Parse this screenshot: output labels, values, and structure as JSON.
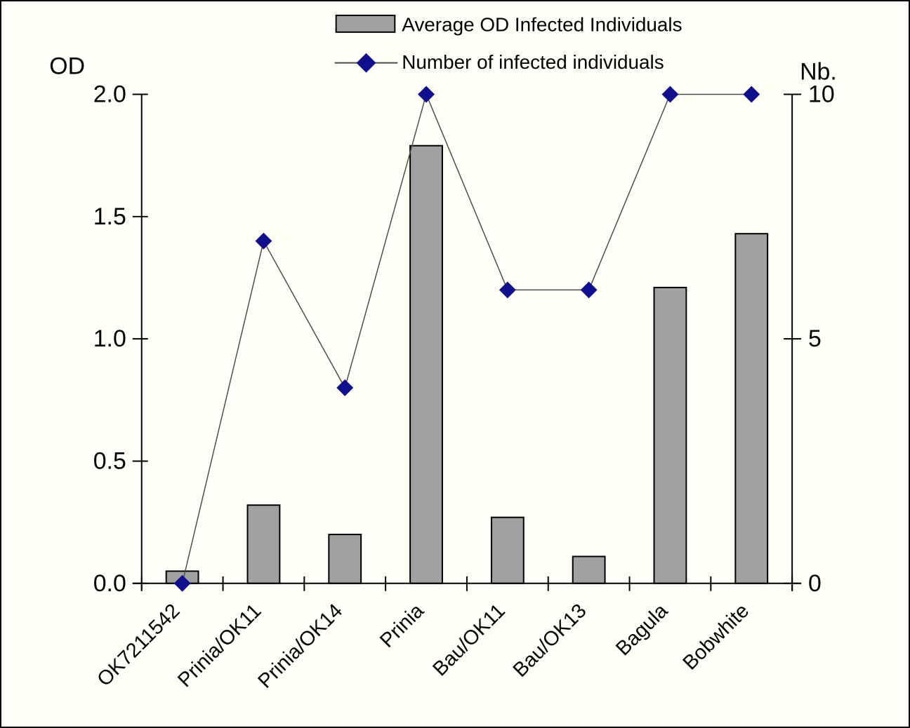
{
  "chart_data": {
    "type": "combo-bar-line",
    "title": "",
    "categories": [
      "OK7211542",
      "Prinia/OK11",
      "Prinia/OK14",
      "Prinia",
      "Bau/OK11",
      "Bau/OK13",
      "Bagula",
      "Bobwhite"
    ],
    "series": [
      {
        "name": "Average OD Infected Individuals",
        "type": "bar",
        "axis": "left",
        "values": [
          0.05,
          0.32,
          0.2,
          1.79,
          0.27,
          0.11,
          1.21,
          1.43
        ]
      },
      {
        "name": "Number of infected individuals",
        "type": "line",
        "axis": "right",
        "marker": "diamond",
        "values": [
          0,
          7,
          4,
          10,
          6,
          6,
          10,
          10
        ]
      }
    ],
    "left_axis": {
      "title": "OD",
      "min": 0,
      "max": 2,
      "tick_labels": [
        "2.0",
        "1.5",
        "1.0",
        "0.5",
        "0.0"
      ],
      "tick_values": [
        2,
        1.5,
        1,
        0.5,
        0
      ]
    },
    "right_axis": {
      "title": "Nb.",
      "min": 0,
      "max": 10,
      "tick_labels": [
        "10",
        "5",
        "0"
      ],
      "tick_values": [
        10,
        5,
        0
      ]
    },
    "legend_position": "top",
    "grid": false
  },
  "legend": {
    "bar_label": "Average OD Infected Individuals",
    "line_label": "Number of infected individuals"
  },
  "colors": {
    "background": "#FFFFF7",
    "bar_fill": "#A1A1A1",
    "bar_stroke": "#000000",
    "marker_fill": "#10108E",
    "series_line": "#4D4D4D",
    "axis": "#000000",
    "text": "#000000"
  }
}
